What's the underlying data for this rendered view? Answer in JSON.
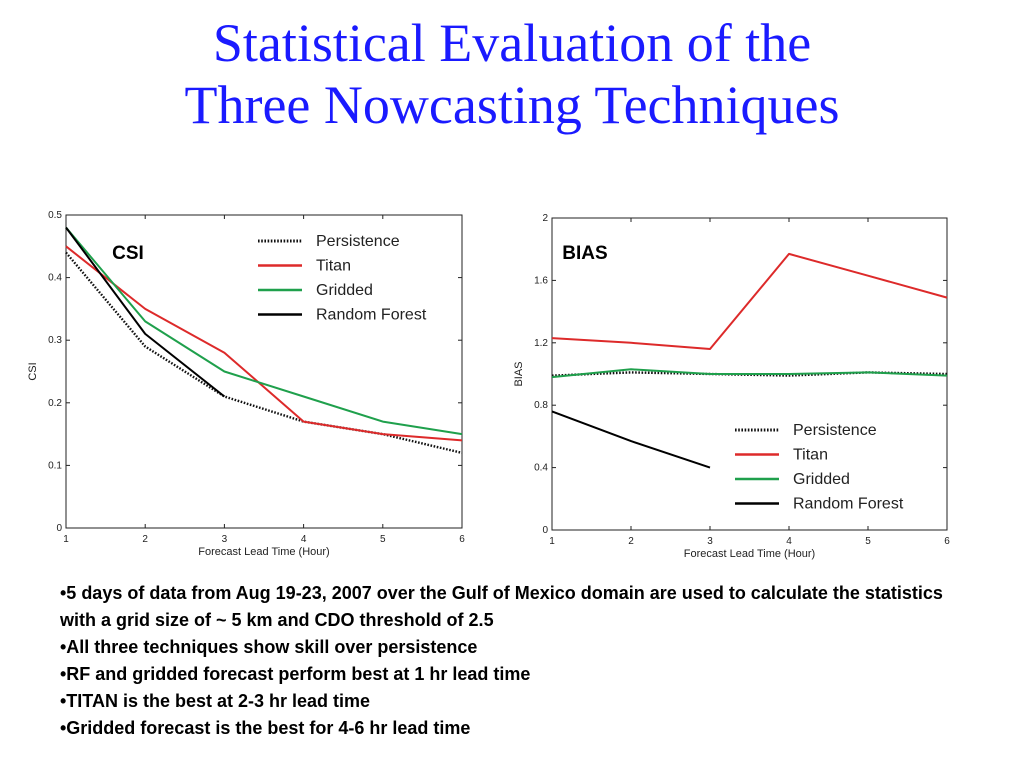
{
  "slide": {
    "title_line1": "Statistical Evaluation of the",
    "title_line2": "Three Nowcasting Techniques"
  },
  "legend": [
    "Persistence",
    "Titan",
    "Gridded",
    "Random Forest"
  ],
  "colors": {
    "Persistence": "#111111",
    "Titan": "#dd2a2a",
    "Gridded": "#1fa04c",
    "Random Forest": "#000000",
    "title": "#1a1aff"
  },
  "chart_data": [
    {
      "type": "line",
      "panel_label": "CSI",
      "xlabel": "Forecast Lead Time (Hour)",
      "ylabel": "CSI",
      "x": [
        1,
        2,
        3,
        4,
        5,
        6
      ],
      "xlim": [
        1,
        6
      ],
      "ylim": [
        0,
        0.5
      ],
      "yticks": [
        "0",
        "0.1",
        "0.2",
        "0.3",
        "0.4",
        "0.5"
      ],
      "xticks": [
        "1",
        "2",
        "3",
        "4",
        "5",
        "6"
      ],
      "legend_position": "top-right",
      "series": [
        {
          "name": "Persistence",
          "style": "dotted",
          "values": [
            0.44,
            0.29,
            0.21,
            0.17,
            0.15,
            0.12
          ]
        },
        {
          "name": "Titan",
          "style": "solid",
          "values": [
            0.45,
            0.35,
            0.28,
            0.17,
            0.15,
            0.14
          ]
        },
        {
          "name": "Gridded",
          "style": "solid",
          "values": [
            0.48,
            0.33,
            0.25,
            0.21,
            0.17,
            0.15
          ]
        },
        {
          "name": "Random Forest",
          "style": "solid",
          "values": [
            0.48,
            0.31,
            0.21,
            null,
            null,
            null
          ]
        }
      ]
    },
    {
      "type": "line",
      "panel_label": "BIAS",
      "xlabel": "Forecast Lead Time (Hour)",
      "ylabel": "BIAS",
      "x": [
        1,
        2,
        3,
        4,
        5,
        6
      ],
      "xlim": [
        1,
        6
      ],
      "ylim": [
        0,
        2
      ],
      "yticks": [
        "0",
        "0.4",
        "0.8",
        "1.2",
        "1.6",
        "2"
      ],
      "xticks": [
        "1",
        "2",
        "3",
        "4",
        "5",
        "6"
      ],
      "legend_position": "bottom-right",
      "series": [
        {
          "name": "Persistence",
          "style": "dotted",
          "values": [
            0.99,
            1.01,
            1.0,
            0.99,
            1.01,
            1.0
          ]
        },
        {
          "name": "Titan",
          "style": "solid",
          "values": [
            1.23,
            1.2,
            1.16,
            1.77,
            1.63,
            1.49
          ]
        },
        {
          "name": "Gridded",
          "style": "solid",
          "values": [
            0.98,
            1.03,
            1.0,
            1.0,
            1.01,
            0.99
          ]
        },
        {
          "name": "Random Forest",
          "style": "solid",
          "values": [
            0.76,
            0.57,
            0.4,
            null,
            null,
            null
          ]
        }
      ]
    }
  ],
  "bullets": [
    "•5 days of data from Aug 19-23, 2007 over the Gulf of Mexico domain are used to calculate the statistics with a grid size of ~ 5 km and CDO threshold of 2.5",
    "•All three techniques show skill over persistence",
    "•RF and gridded forecast perform best at 1 hr lead time",
    "•TITAN is the best at 2-3 hr lead time",
    "•Gridded forecast is the best for 4-6 hr lead time"
  ]
}
